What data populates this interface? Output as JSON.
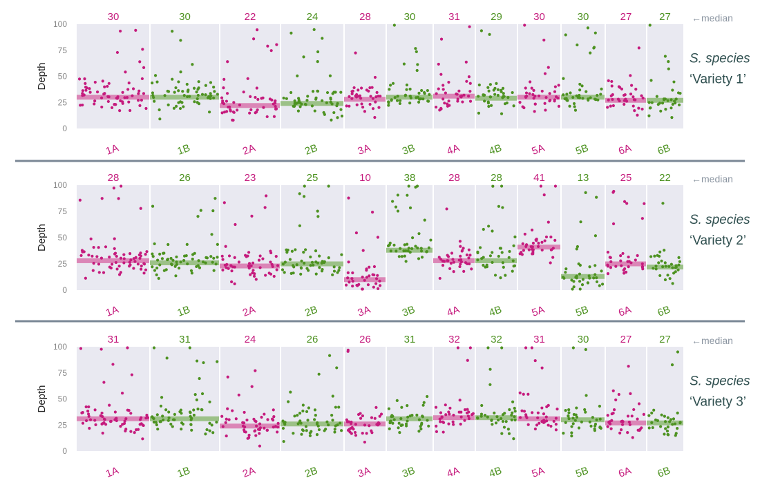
{
  "chart_data": [
    {
      "type": "scatter",
      "title": "",
      "species": "S. species",
      "variety": "‘Variety 1’",
      "ylabel": "Depth",
      "ylim": [
        0,
        100
      ],
      "yticks": [
        0,
        25,
        50,
        75,
        100
      ],
      "median_label": "←median",
      "categories": [
        "1A",
        "1B",
        "2A",
        "2B",
        "3A",
        "3B",
        "4A",
        "4B",
        "5A",
        "5B",
        "6A",
        "6B"
      ],
      "medians": [
        30,
        30,
        22,
        24,
        28,
        30,
        31,
        29,
        30,
        30,
        27,
        27
      ]
    },
    {
      "type": "scatter",
      "title": "",
      "species": "S. species",
      "variety": "‘Variety 2’",
      "ylabel": "Depth",
      "ylim": [
        0,
        100
      ],
      "yticks": [
        0,
        25,
        50,
        75,
        100
      ],
      "median_label": "←median",
      "categories": [
        "1A",
        "1B",
        "2A",
        "2B",
        "3A",
        "3B",
        "4A",
        "4B",
        "5A",
        "5B",
        "6A",
        "6B"
      ],
      "medians": [
        28,
        26,
        23,
        25,
        10,
        38,
        28,
        28,
        41,
        13,
        25,
        22
      ]
    },
    {
      "type": "scatter",
      "title": "",
      "species": "S. species",
      "variety": "‘Variety 3’",
      "ylabel": "Depth",
      "ylim": [
        0,
        100
      ],
      "yticks": [
        0,
        25,
        50,
        75,
        100
      ],
      "median_label": "←median",
      "categories": [
        "1A",
        "1B",
        "2A",
        "2B",
        "3A",
        "3B",
        "4A",
        "4B",
        "5A",
        "5B",
        "6A",
        "6B"
      ],
      "medians": [
        31,
        31,
        24,
        26,
        26,
        31,
        32,
        32,
        31,
        30,
        27,
        27
      ]
    }
  ],
  "colors": {
    "A": "#c51b7d",
    "B": "#4d9221",
    "A_median": "#d97bb0",
    "B_median": "#93bd7c",
    "panel_bg": "#e9e9f1",
    "species_text": "#2f4f4f",
    "median_note": "#8a94a0",
    "divider": "#7a8795"
  }
}
